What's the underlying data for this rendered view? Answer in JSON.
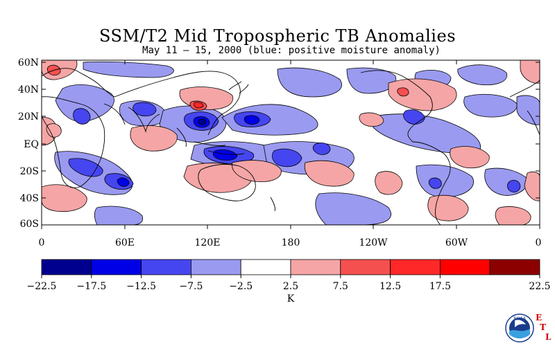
{
  "title": "SSM/T2 Mid Tropospheric TB Anomalies",
  "subtitle": "May 11 – 15, 2000 (blue: positive moisture anomaly)",
  "map": {
    "lat_labels": [
      "60N",
      "40N",
      "20N",
      "EQ",
      "20S",
      "40S",
      "60S"
    ],
    "lon_labels": [
      "0",
      "60E",
      "120E",
      "180",
      "120W",
      "60W",
      "0"
    ]
  },
  "colorbar": {
    "colors": [
      "#00008f",
      "#0000e6",
      "#4646f0",
      "#9a9af0",
      "#ffffff",
      "#f5a5a5",
      "#f55050",
      "#ff2828",
      "#ff0000",
      "#8c0000"
    ],
    "tick_labels": [
      "-22.5",
      "-17.5",
      "-12.5",
      "-7.5",
      "-2.5",
      "2.5",
      "7.5",
      "12.5",
      "17.5",
      "22.5"
    ],
    "unit": "K"
  },
  "logo": {
    "text": "NOAA",
    "etl": [
      "E",
      "T",
      "L"
    ]
  }
}
